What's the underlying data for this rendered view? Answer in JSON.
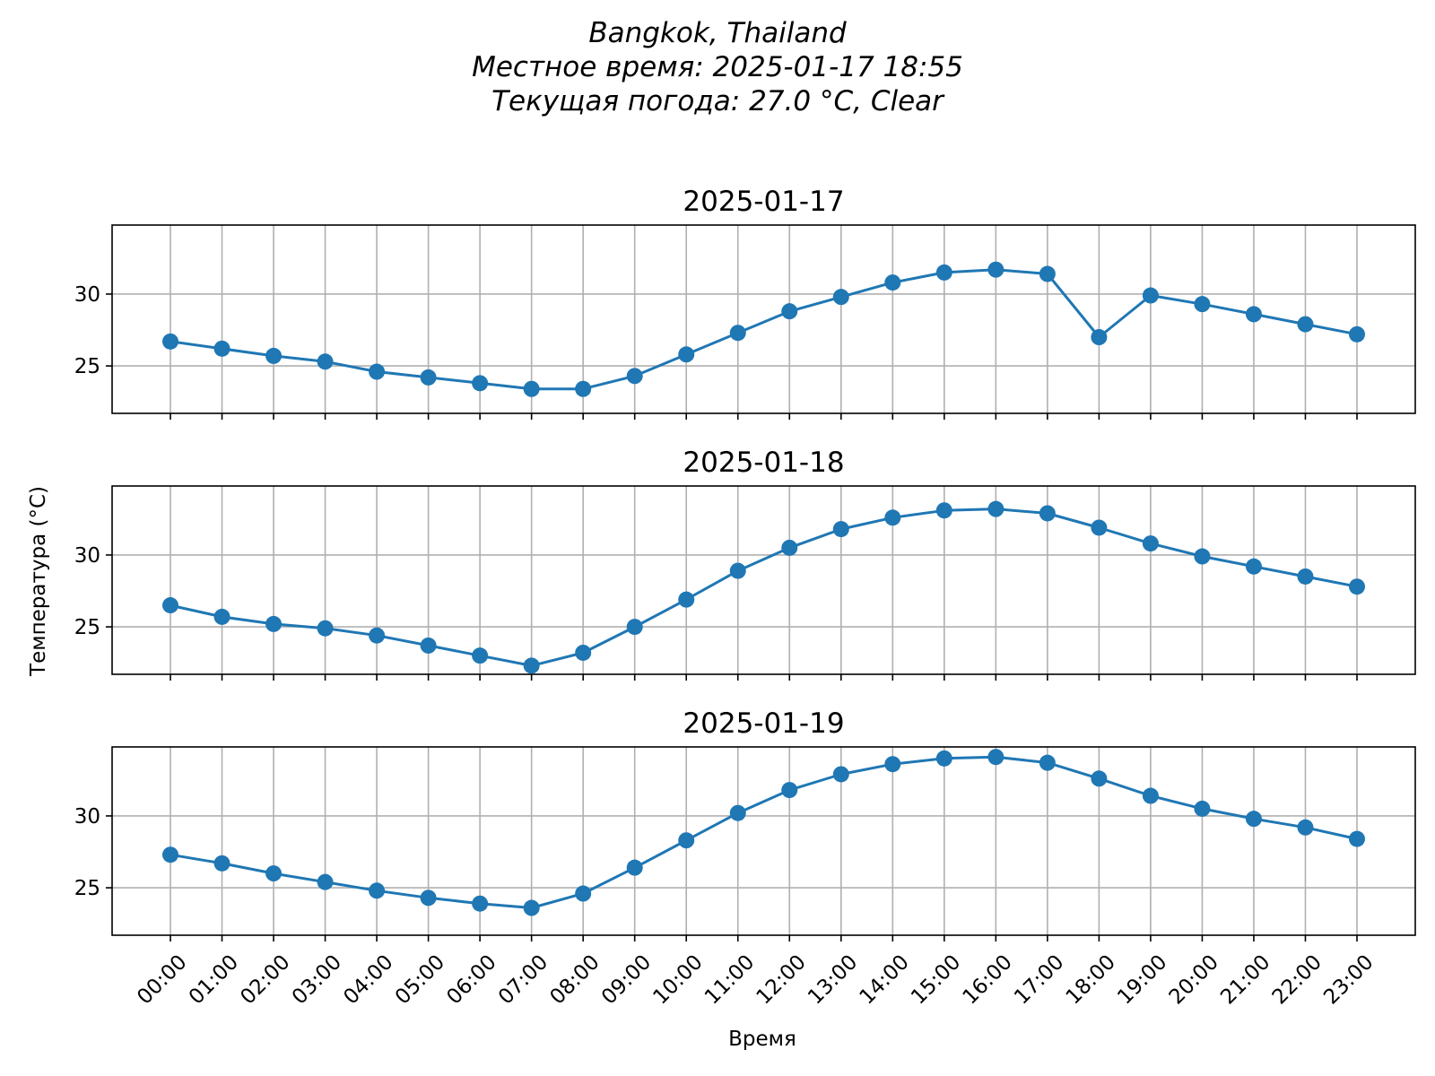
{
  "header": {
    "line1": "Bangkok, Thailand",
    "line2": "Местное время: 2025-01-17 18:55",
    "line3": "Текущая погода: 27.0 °C, Clear"
  },
  "chart_data": {
    "type": "line",
    "xlabel": "Время",
    "ylabel": "Температура (°C)",
    "x": [
      "00:00",
      "01:00",
      "02:00",
      "03:00",
      "04:00",
      "05:00",
      "06:00",
      "07:00",
      "08:00",
      "09:00",
      "10:00",
      "11:00",
      "12:00",
      "13:00",
      "14:00",
      "15:00",
      "16:00",
      "17:00",
      "18:00",
      "19:00",
      "20:00",
      "21:00",
      "22:00",
      "23:00"
    ],
    "yticks": [
      25,
      30
    ],
    "ylim": [
      21.7,
      34.8
    ],
    "grid": true,
    "color": "#1f77b4",
    "panels": [
      {
        "title": "2025-01-17",
        "values": [
          26.7,
          26.2,
          25.7,
          25.3,
          24.6,
          24.2,
          23.8,
          23.4,
          23.4,
          24.3,
          25.8,
          27.3,
          28.8,
          29.8,
          30.8,
          31.5,
          31.7,
          31.4,
          27.0,
          29.9,
          29.3,
          28.6,
          27.9,
          27.2
        ]
      },
      {
        "title": "2025-01-18",
        "values": [
          26.5,
          25.7,
          25.2,
          24.9,
          24.4,
          23.7,
          23.0,
          22.3,
          23.2,
          25.0,
          26.9,
          28.9,
          30.5,
          31.8,
          32.6,
          33.1,
          33.2,
          32.9,
          31.9,
          30.8,
          29.9,
          29.2,
          28.5,
          27.8
        ]
      },
      {
        "title": "2025-01-19",
        "values": [
          27.3,
          26.7,
          26.0,
          25.4,
          24.8,
          24.3,
          23.9,
          23.6,
          24.6,
          26.4,
          28.3,
          30.2,
          31.8,
          32.9,
          33.6,
          34.0,
          34.1,
          33.7,
          32.6,
          31.4,
          30.5,
          29.8,
          29.2,
          28.4
        ]
      }
    ]
  }
}
